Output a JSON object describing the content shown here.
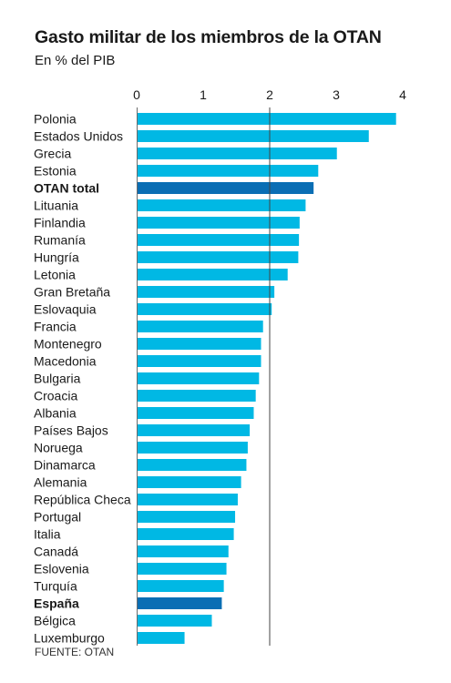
{
  "title": "Gasto militar de los miembros de la OTAN",
  "subtitle": "En % del PIB",
  "source": "FUENTE: OTAN",
  "colors": {
    "bar": "#00b8e4",
    "highlight": "#0a6eb4",
    "axis": "#6b6b6b",
    "gridline": "#444444"
  },
  "chart_data": {
    "type": "bar",
    "orientation": "horizontal",
    "title": "Gasto militar de los miembros de la OTAN",
    "subtitle": "En % del PIB",
    "xlim": [
      0,
      4
    ],
    "xticks": [
      0,
      1,
      2,
      3,
      4
    ],
    "reference_line": 2,
    "categories": [
      "Polonia",
      "Estados Unidos",
      "Grecia",
      "Estonia",
      "OTAN total",
      "Lituania",
      "Finlandia",
      "Rumanía",
      "Hungría",
      "Letonia",
      "Gran Bretaña",
      "Eslovaquia",
      "Francia",
      "Montenegro",
      "Macedonia",
      "Bulgaria",
      "Croacia",
      "Albania",
      "Países Bajos",
      "Noruega",
      "Dinamarca",
      "Alemania",
      "República Checa",
      "Portugal",
      "Italia",
      "Canadá",
      "Eslovenia",
      "Turquía",
      "España",
      "Bélgica",
      "Luxemburgo"
    ],
    "values": [
      3.9,
      3.49,
      3.01,
      2.73,
      2.66,
      2.54,
      2.45,
      2.44,
      2.43,
      2.27,
      2.07,
      2.03,
      1.9,
      1.87,
      1.87,
      1.84,
      1.79,
      1.76,
      1.7,
      1.67,
      1.65,
      1.57,
      1.52,
      1.48,
      1.46,
      1.38,
      1.35,
      1.31,
      1.28,
      1.13,
      0.72
    ],
    "highlighted": [
      "OTAN total",
      "España"
    ]
  }
}
